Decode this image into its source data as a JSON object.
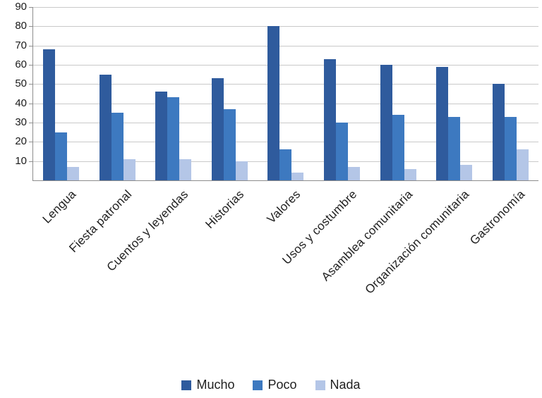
{
  "chart_data": {
    "type": "bar",
    "categories": [
      "Lengua",
      "Fiesta patronal",
      "Cuentos y leyendas",
      "Historias",
      "Valores",
      "Usos y costumbre",
      "Asamblea comunitaria",
      "Organización comunitaria",
      "Gastronomía"
    ],
    "series": [
      {
        "name": "Mucho",
        "color": "#2f5b9d",
        "values": [
          68,
          55,
          46,
          53,
          80,
          63,
          60,
          59,
          50
        ]
      },
      {
        "name": "Poco",
        "color": "#3d79c0",
        "values": [
          25,
          35,
          43,
          37,
          16,
          30,
          34,
          33,
          33
        ]
      },
      {
        "name": "Nada",
        "color": "#b4c6e7",
        "values": [
          7,
          11,
          11,
          10,
          4,
          7,
          6,
          8,
          16
        ]
      }
    ],
    "title": "",
    "xlabel": "",
    "ylabel": "",
    "ylim": [
      0,
      90
    ],
    "yticks": [
      10,
      20,
      30,
      40,
      50,
      60,
      70,
      80,
      90
    ],
    "grid": true,
    "legend_position": "bottom"
  },
  "colors": {
    "gridline": "#c9c9c9",
    "axis": "#8c8c8c",
    "text": "#1f1f1f"
  }
}
